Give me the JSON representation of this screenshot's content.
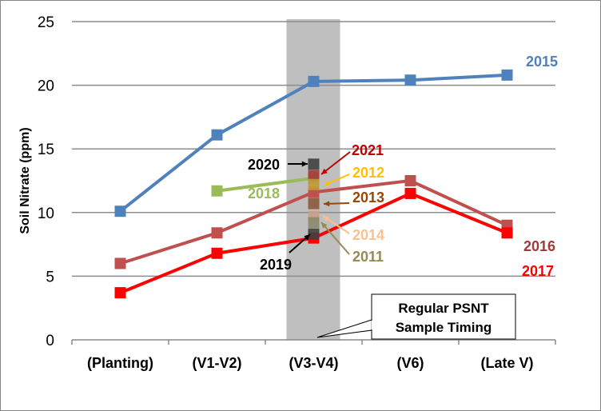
{
  "chart_data": {
    "type": "line",
    "title": "",
    "xlabel": "",
    "ylabel": "Soil Nitrate (ppm)",
    "ylim": [
      0,
      25
    ],
    "yticks": [
      0,
      5,
      10,
      15,
      20,
      25
    ],
    "grid": true,
    "legend": "direct labels at line ends",
    "categories": [
      "(Planting)",
      "(V1-V2)",
      "(V3-V4)",
      "(V6)",
      "(Late V)"
    ],
    "highlight": {
      "category": "(V3-V4)",
      "color": "#bfbfbf"
    },
    "annotation": "Regular PSNT Sample Timing",
    "series": [
      {
        "name": "2015",
        "color": "#4f81bd",
        "values": [
          10.1,
          16.1,
          20.3,
          20.4,
          20.8
        ]
      },
      {
        "name": "2016",
        "color": "#c0504d",
        "values": [
          6.0,
          8.4,
          11.6,
          12.5,
          9.0
        ]
      },
      {
        "name": "2017",
        "color": "#ff0000",
        "values": [
          3.7,
          6.8,
          8.0,
          11.5,
          8.4
        ]
      },
      {
        "name": "2018",
        "color": "#9bbb59",
        "values": [
          null,
          11.7,
          12.7,
          null,
          null
        ]
      }
    ],
    "single_points": [
      {
        "name": "2020",
        "color": "#404040",
        "value": 13.8,
        "label_color": "#000000"
      },
      {
        "name": "2021",
        "color": "#a33a3a",
        "value": 12.9,
        "label_color": "#c00000"
      },
      {
        "name": "2012",
        "color": "#c09a3a",
        "value": 12.2,
        "label_color": "#ffc000"
      },
      {
        "name": "2013",
        "color": "#8a5a3a",
        "value": 10.7,
        "label_color": "#974706"
      },
      {
        "name": "2014",
        "color": "#c8a088",
        "value": 9.7,
        "label_color": "#fac090"
      },
      {
        "name": "2011",
        "color": "#8a8a6a",
        "value": 9.2,
        "label_color": "#948a54"
      },
      {
        "name": "2019",
        "color": "#404040",
        "value": 8.3,
        "label_color": "#000000"
      }
    ]
  }
}
